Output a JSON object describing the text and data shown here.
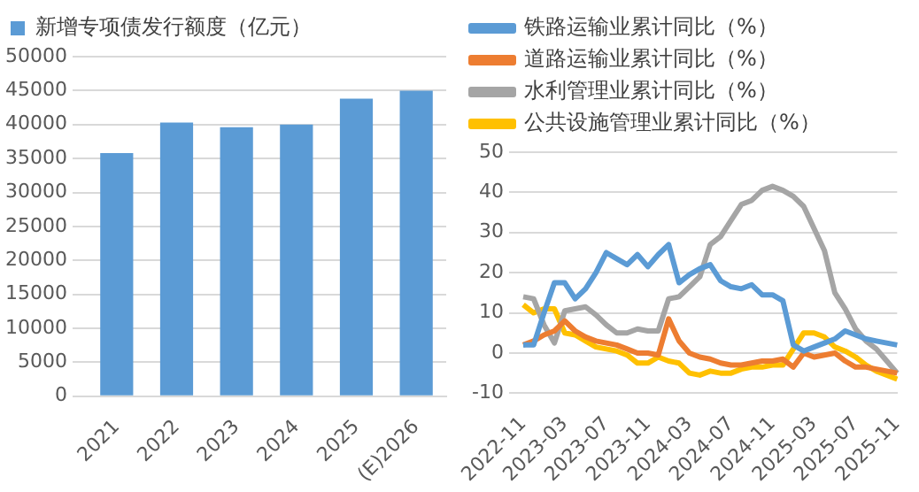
{
  "chart_data": [
    {
      "type": "bar",
      "categories": [
        "2021",
        "2022",
        "2023",
        "2024",
        "2025",
        "(E)2026"
      ],
      "series": [
        {
          "name": "新增专项债发行额度（亿元）",
          "color": "#5b9bd5",
          "values": [
            35800,
            40300,
            39600,
            40000,
            43800,
            45000
          ]
        }
      ],
      "ylim": [
        0,
        50000
      ],
      "yticks": [
        0,
        5000,
        10000,
        15000,
        20000,
        25000,
        30000,
        35000,
        40000,
        45000,
        50000
      ],
      "grid": "y",
      "legend": "top"
    },
    {
      "type": "line",
      "categories": [
        "2022-11",
        null,
        null,
        null,
        "2023-03",
        null,
        null,
        null,
        "2023-07",
        null,
        null,
        null,
        "2023-11",
        null,
        null,
        null,
        "2024-03",
        null,
        null,
        null,
        "2024-07",
        null,
        null,
        null,
        "2024-11",
        null,
        null,
        null,
        "2025-03",
        null,
        null,
        null,
        "2025-07",
        null,
        null,
        null,
        "2025-11"
      ],
      "series": [
        {
          "name": "铁路运输业累计同比（%）",
          "color": "#5b9bd5",
          "values": [
            2,
            2,
            10,
            17.5,
            17.5,
            13.5,
            16,
            20,
            25,
            23.5,
            22,
            24.5,
            21.5,
            24.5,
            27,
            17.5,
            19.5,
            21,
            22,
            18,
            16.5,
            16,
            17,
            14.5,
            14.5,
            13,
            2,
            0.5,
            1.5,
            2.5,
            3.5,
            5.5,
            4.5,
            3.5,
            3,
            2.5,
            2
          ]
        },
        {
          "name": "道路运输业累计同比（%）",
          "color": "#ed7d31",
          "values": [
            2,
            3,
            4.5,
            5.5,
            8,
            5.5,
            4,
            3,
            2.5,
            2,
            1,
            0,
            0,
            -0.5,
            8.5,
            3,
            0,
            -1,
            -1.5,
            -2.5,
            -3,
            -3,
            -2.5,
            -2,
            -2,
            -1.5,
            -3.5,
            0,
            -1,
            -0.5,
            0,
            -2,
            -3.5,
            -3.5,
            -4,
            -4.5,
            -5
          ]
        },
        {
          "name": "水利管理业累计同比（%）",
          "color": "#a5a5a5",
          "values": [
            14,
            13.5,
            7,
            2.5,
            10.5,
            11,
            11.5,
            9.5,
            7,
            5,
            5,
            6,
            5.5,
            5.5,
            13.5,
            14,
            16.5,
            19,
            27,
            29,
            33,
            37,
            38,
            40.5,
            41.5,
            40.5,
            39,
            36.5,
            31,
            25.5,
            15,
            11,
            6,
            3,
            1,
            -2,
            -5
          ]
        },
        {
          "name": "公共设施管理业累计同比（%）",
          "color": "#ffc000",
          "values": [
            12,
            10,
            11,
            11,
            5,
            4.5,
            3,
            1.5,
            1,
            0.5,
            -0.5,
            -2.5,
            -2.5,
            -1,
            -2,
            -2.5,
            -5,
            -5.5,
            -4.5,
            -5,
            -5,
            -4,
            -3.5,
            -3.5,
            -3,
            -3,
            1,
            5,
            5,
            4,
            1.5,
            0.5,
            -1,
            -3,
            -4.5,
            -5.5,
            -6.5
          ]
        }
      ],
      "ylim": [
        -10,
        50
      ],
      "yticks": [
        -10,
        0,
        10,
        20,
        30,
        40,
        50
      ],
      "grid": "y",
      "legend": "top",
      "marker": "none"
    }
  ]
}
